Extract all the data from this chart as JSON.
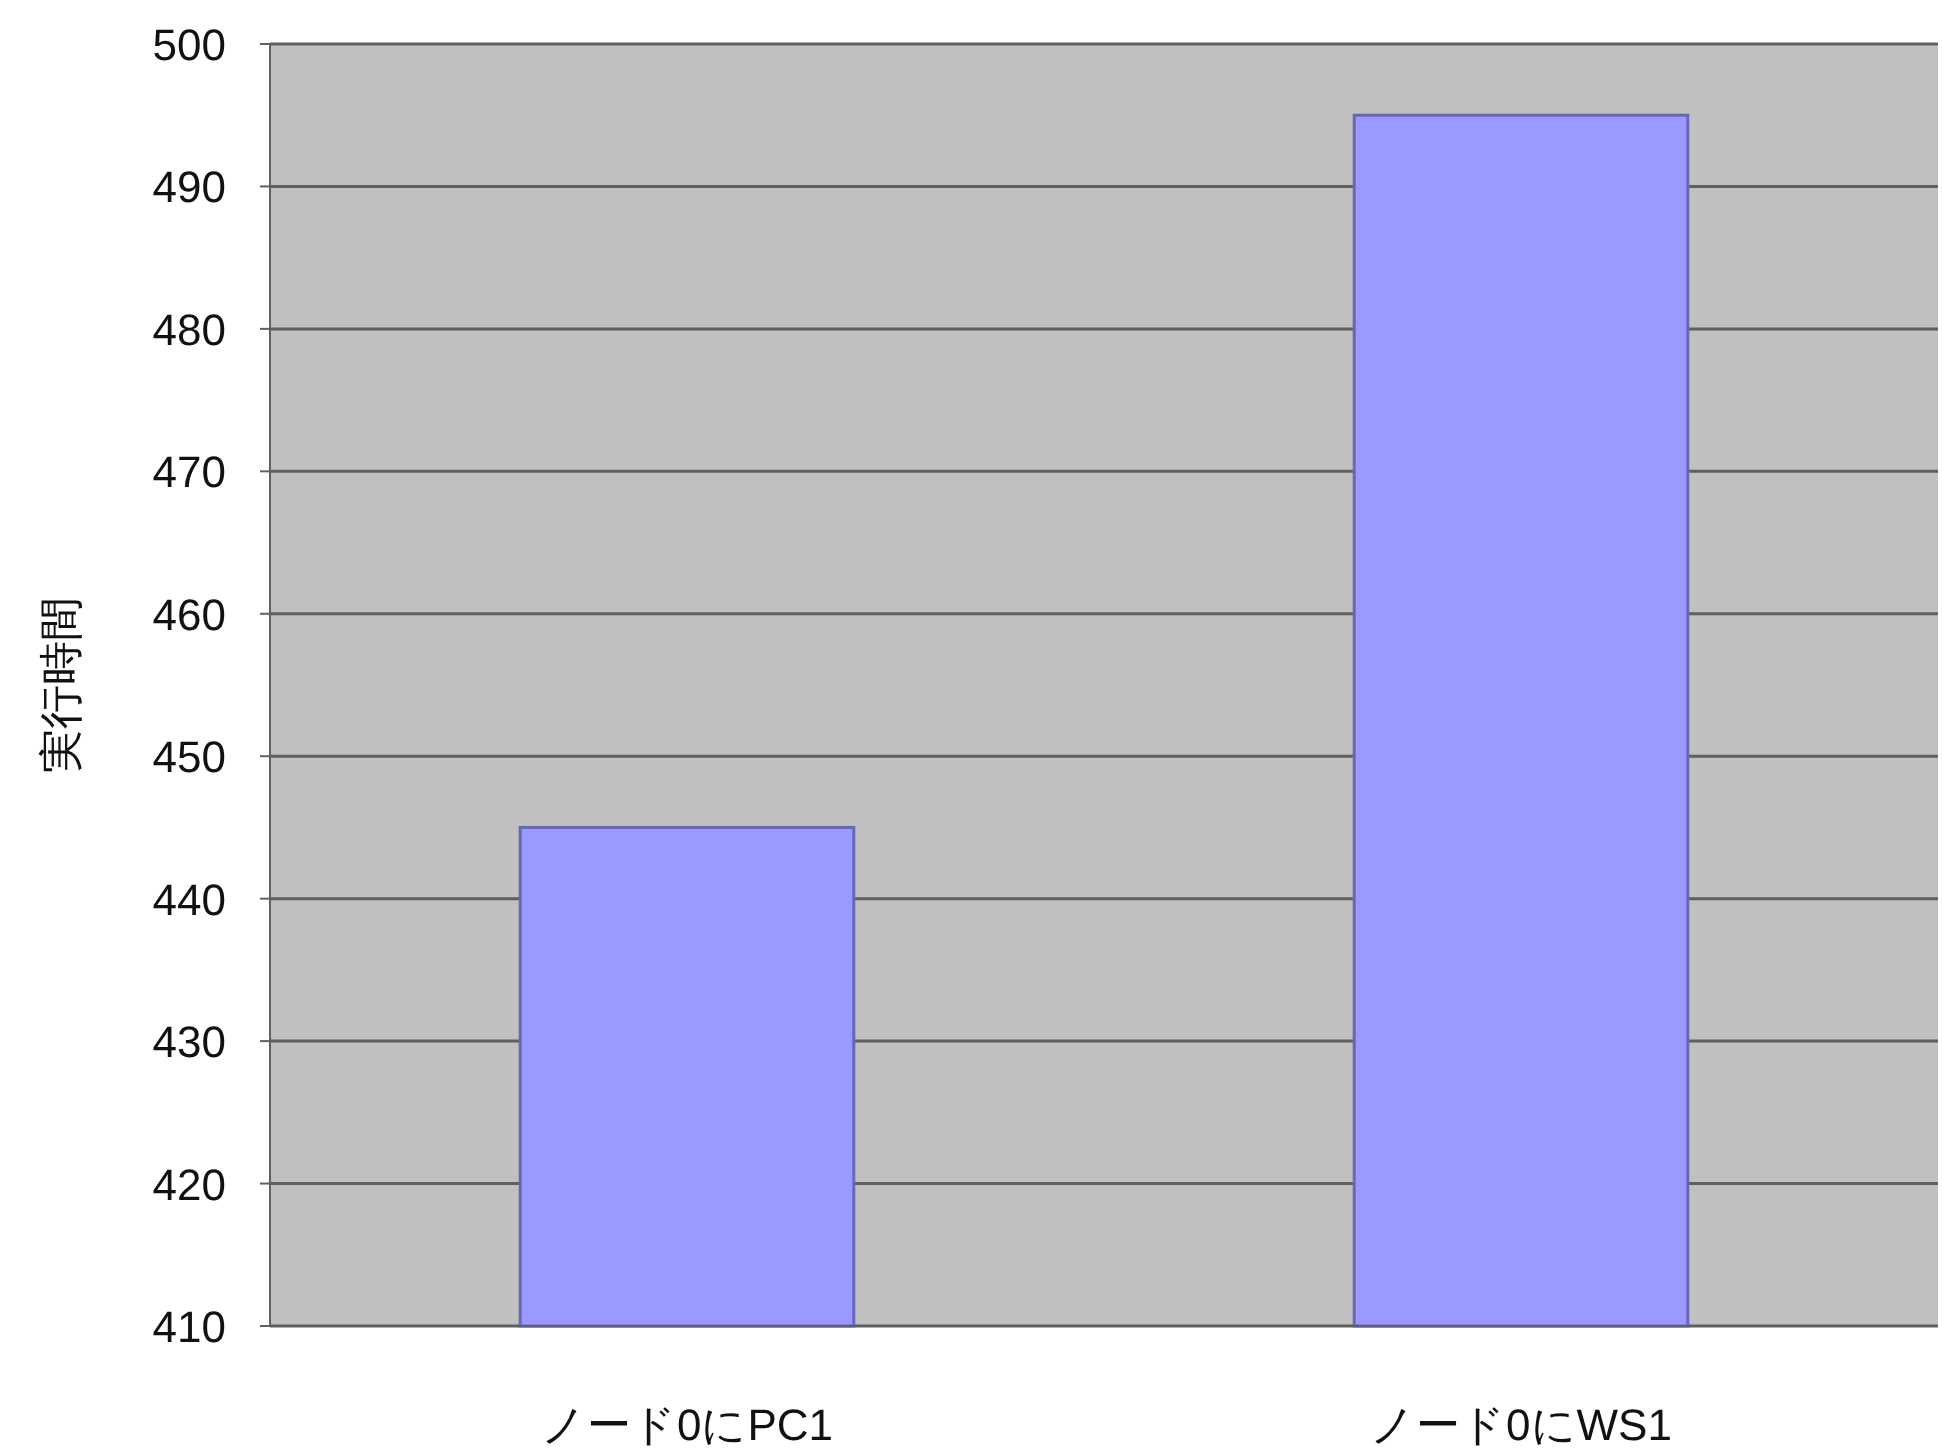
{
  "chart_data": {
    "type": "bar",
    "ylabel": "実行時間",
    "categories": [
      "ノード0にPC1",
      "ノード0にWS1"
    ],
    "values": [
      445,
      495
    ],
    "color": "#9999ff",
    "ylim": [
      410,
      500
    ],
    "yticks": [
      410,
      420,
      430,
      440,
      450,
      460,
      470,
      480,
      490,
      500
    ],
    "grid": "y"
  }
}
